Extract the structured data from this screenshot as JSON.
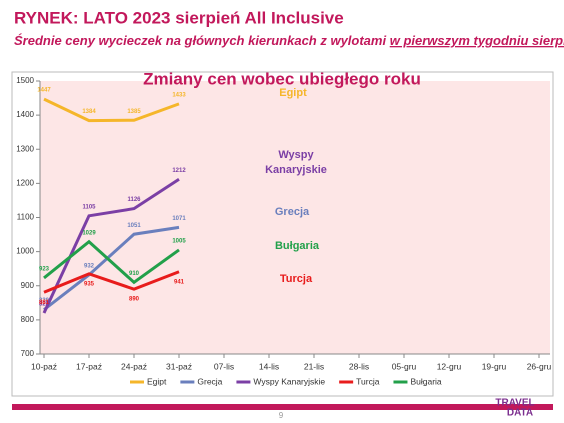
{
  "header": {
    "title": "RYNEK: LATO 2023 sierpień All Inclusive",
    "subtitle": "Średnie ceny wycieczek na głównych kierunkach z wylotami",
    "subtitle_underlined": "w pierwszym tygodniu sierpnia"
  },
  "chart_data": {
    "type": "line",
    "title": "Zmiany cen wobec ubiegłego roku",
    "categories": [
      "10-paź",
      "17-paź",
      "24-paź",
      "31-paź",
      "07-lis",
      "14-lis",
      "21-lis",
      "28-lis",
      "05-gru",
      "12-gru",
      "19-gru",
      "26-gru"
    ],
    "series": [
      {
        "name": "Egipt",
        "color": "#f5b62a",
        "values": [
          1447,
          1384,
          1385,
          1433,
          null,
          null,
          null,
          null,
          null,
          null,
          null,
          null
        ]
      },
      {
        "name": "Grecja",
        "color": "#6a7fbd",
        "values": [
          830,
          932,
          1051,
          1071,
          null,
          null,
          null,
          null,
          null,
          null,
          null,
          null
        ]
      },
      {
        "name": "Wyspy Kanaryjskie",
        "color": "#7b3fa5",
        "values": [
          820,
          1105,
          1126,
          1212,
          null,
          null,
          null,
          null,
          null,
          null,
          null,
          null
        ]
      },
      {
        "name": "Turcja",
        "color": "#e81c1c",
        "values": [
          881,
          935,
          890,
          941,
          null,
          null,
          null,
          null,
          null,
          null,
          null,
          null
        ]
      },
      {
        "name": "Bułgaria",
        "color": "#22a04a",
        "values": [
          923,
          1029,
          910,
          1005,
          null,
          null,
          null,
          null,
          null,
          null,
          null,
          null
        ]
      }
    ],
    "ylim": [
      700,
      1500
    ],
    "yticks": [
      700,
      800,
      900,
      1000,
      1100,
      1200,
      1300,
      1400,
      1500
    ],
    "legend": "bottom"
  },
  "footer": {
    "page": "9",
    "logo_top": "TRAVEL",
    "logo_bottom": "DATA"
  }
}
